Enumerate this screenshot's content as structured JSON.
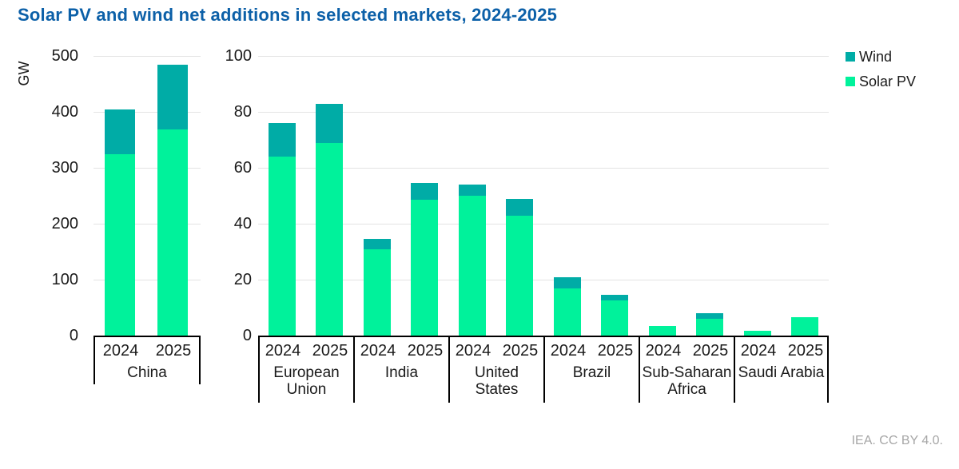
{
  "title": "Solar PV and wind net additions in selected markets, 2024-2025",
  "footer": "IEA. CC BY 4.0.",
  "legend": [
    {
      "label": "Wind",
      "color": "#00ACA6",
      "icon": "legend-swatch-wind"
    },
    {
      "label": "Solar PV",
      "color": "#00F29B",
      "icon": "legend-swatch-solar-pv"
    }
  ],
  "colors": {
    "solar_pv": "#00F29B",
    "wind": "#00ACA6",
    "title_blue": "#0C60A8",
    "gridline": "#E3E3E3",
    "axis": "#000000",
    "footer_gray": "#A6A6A6"
  },
  "chart_data": {
    "type": "bar",
    "stacked": true,
    "title": "Solar PV and wind net additions in selected markets, 2024-2025",
    "ylabel": "GW",
    "unit": "GW",
    "grid": "horizontal",
    "legend_position": "top-right",
    "series_order_bottom_to_top": [
      "Solar PV",
      "Wind"
    ],
    "panels": [
      {
        "name": "left-panel",
        "ylim": [
          0,
          500
        ],
        "yticks": [
          0,
          100,
          200,
          300,
          400,
          500
        ],
        "groups": [
          {
            "label": "China",
            "bars": [
              {
                "year": "2024",
                "solar_pv": 325,
                "wind": 80,
                "total": 405
              },
              {
                "year": "2025",
                "solar_pv": 368,
                "wind": 117,
                "total": 485
              }
            ]
          }
        ]
      },
      {
        "name": "right-panel",
        "ylim": [
          0,
          100
        ],
        "yticks": [
          0,
          20,
          40,
          60,
          80,
          100
        ],
        "groups": [
          {
            "label": "European Union",
            "bars": [
              {
                "year": "2024",
                "solar_pv": 64,
                "wind": 12,
                "total": 76
              },
              {
                "year": "2025",
                "solar_pv": 69,
                "wind": 14,
                "total": 83
              }
            ]
          },
          {
            "label": "India",
            "bars": [
              {
                "year": "2024",
                "solar_pv": 31,
                "wind": 3.5,
                "total": 34.5
              },
              {
                "year": "2025",
                "solar_pv": 48.5,
                "wind": 6,
                "total": 54.5
              }
            ]
          },
          {
            "label": "United States",
            "bars": [
              {
                "year": "2024",
                "solar_pv": 50,
                "wind": 4,
                "total": 54
              },
              {
                "year": "2025",
                "solar_pv": 43,
                "wind": 6,
                "total": 49
              }
            ]
          },
          {
            "label": "Brazil",
            "bars": [
              {
                "year": "2024",
                "solar_pv": 17,
                "wind": 4,
                "total": 21
              },
              {
                "year": "2025",
                "solar_pv": 12.5,
                "wind": 2,
                "total": 14.5
              }
            ]
          },
          {
            "label": "Sub-Saharan Africa",
            "bars": [
              {
                "year": "2024",
                "solar_pv": 3.3,
                "wind": 0,
                "total": 3.3
              },
              {
                "year": "2025",
                "solar_pv": 6,
                "wind": 2,
                "total": 8
              }
            ]
          },
          {
            "label": "Saudi Arabia",
            "bars": [
              {
                "year": "2024",
                "solar_pv": 1.8,
                "wind": 0,
                "total": 1.8
              },
              {
                "year": "2025",
                "solar_pv": 6.5,
                "wind": 0,
                "total": 6.5
              }
            ]
          }
        ]
      }
    ]
  }
}
